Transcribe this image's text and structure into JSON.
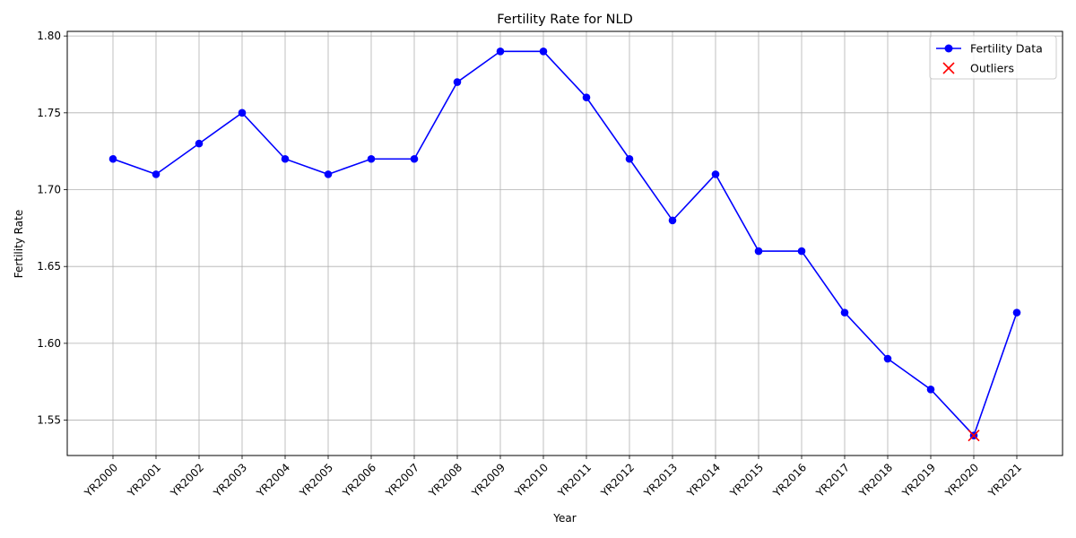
{
  "chart_data": {
    "type": "line",
    "title": "Fertility Rate for NLD",
    "xlabel": "Year",
    "ylabel": "Fertility Rate",
    "categories": [
      "YR2000",
      "YR2001",
      "YR2002",
      "YR2003",
      "YR2004",
      "YR2005",
      "YR2006",
      "YR2007",
      "YR2008",
      "YR2009",
      "YR2010",
      "YR2011",
      "YR2012",
      "YR2013",
      "YR2014",
      "YR2015",
      "YR2016",
      "YR2017",
      "YR2018",
      "YR2019",
      "YR2020",
      "YR2021"
    ],
    "series": [
      {
        "name": "Fertility Data",
        "color": "#0000ff",
        "marker": "circle",
        "values": [
          1.72,
          1.71,
          1.73,
          1.75,
          1.72,
          1.71,
          1.72,
          1.72,
          1.77,
          1.79,
          1.79,
          1.76,
          1.72,
          1.68,
          1.71,
          1.66,
          1.66,
          1.62,
          1.59,
          1.57,
          1.54,
          1.62
        ]
      }
    ],
    "outliers": {
      "name": "Outliers",
      "color": "#ff0000",
      "marker": "x",
      "categories": [
        "YR2020"
      ],
      "values": [
        1.54
      ]
    },
    "ylim": [
      1.527,
      1.803
    ],
    "yticks": [
      1.55,
      1.6,
      1.65,
      1.7,
      1.75,
      1.8
    ],
    "ytick_labels": [
      "1.55",
      "1.60",
      "1.65",
      "1.70",
      "1.75",
      "1.80"
    ],
    "grid": true,
    "legend_position": "top-right"
  }
}
